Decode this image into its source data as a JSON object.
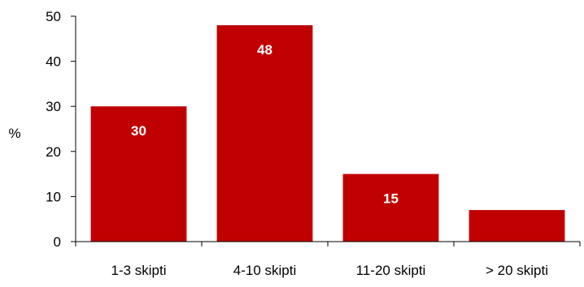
{
  "chart_data": {
    "type": "bar",
    "title": "",
    "xlabel": "",
    "ylabel": "%",
    "categories": [
      "1-3 skipti",
      "4-10 skipti",
      "11-20 skipti",
      "> 20 skipti"
    ],
    "values": [
      30,
      48,
      15,
      7
    ],
    "data_labels": [
      "30",
      "48",
      "15",
      ""
    ],
    "ylim": [
      0,
      50
    ],
    "yticks": [
      0,
      10,
      20,
      30,
      40,
      50
    ],
    "grid": false,
    "bar_color": "#c00000",
    "label_color": "#ffffff"
  }
}
